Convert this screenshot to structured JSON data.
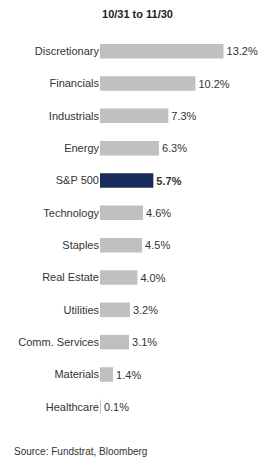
{
  "chart_data": {
    "type": "bar",
    "orientation": "horizontal",
    "title": "10/31 to 11/30",
    "source": "Source: Fundstrat, Bloomberg",
    "categories": [
      "Discretionary",
      "Financials",
      "Industrials",
      "Energy",
      "S&P 500",
      "Technology",
      "Staples",
      "Real Estate",
      "Utilities",
      "Comm. Services",
      "Materials",
      "Healthcare"
    ],
    "values": [
      13.2,
      10.2,
      7.3,
      6.3,
      5.7,
      4.6,
      4.5,
      4.0,
      3.2,
      3.1,
      1.4,
      0.1
    ],
    "value_labels": [
      "13.2%",
      "10.2%",
      "7.3%",
      "6.3%",
      "5.7%",
      "4.6%",
      "4.5%",
      "4.0%",
      "3.2%",
      "3.1%",
      "1.4%",
      "0.1%"
    ],
    "colors": [
      "#c0c0c0",
      "#c0c0c0",
      "#c0c0c0",
      "#c0c0c0",
      "#1b2a5c",
      "#c0c0c0",
      "#c0c0c0",
      "#c0c0c0",
      "#c0c0c0",
      "#c0c0c0",
      "#c0c0c0",
      "#c0c0c0"
    ],
    "data_labels": true,
    "tick_labels": "y",
    "grid": false
  }
}
